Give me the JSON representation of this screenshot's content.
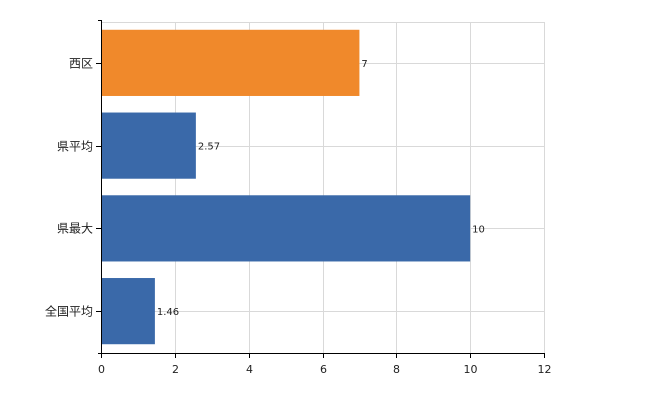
{
  "chart_data": {
    "type": "bar",
    "orientation": "horizontal",
    "title": "",
    "xlabel": "",
    "ylabel": "",
    "categories": [
      "西区",
      "県平均",
      "県最大",
      "全国平均"
    ],
    "values": [
      7,
      2.57,
      10,
      1.46
    ],
    "value_labels": [
      "7",
      "2.57",
      "10",
      "1.46"
    ],
    "bar_colors": [
      "#F0892B",
      "#3A69A9",
      "#3A69A9",
      "#3A69A9"
    ],
    "xlim": [
      0,
      12
    ],
    "xticks": [
      0,
      2,
      4,
      6,
      8,
      10,
      12
    ],
    "xtick_labels": [
      "0",
      "2",
      "4",
      "6",
      "8",
      "10",
      "12"
    ],
    "grid": true,
    "legend": "none"
  }
}
